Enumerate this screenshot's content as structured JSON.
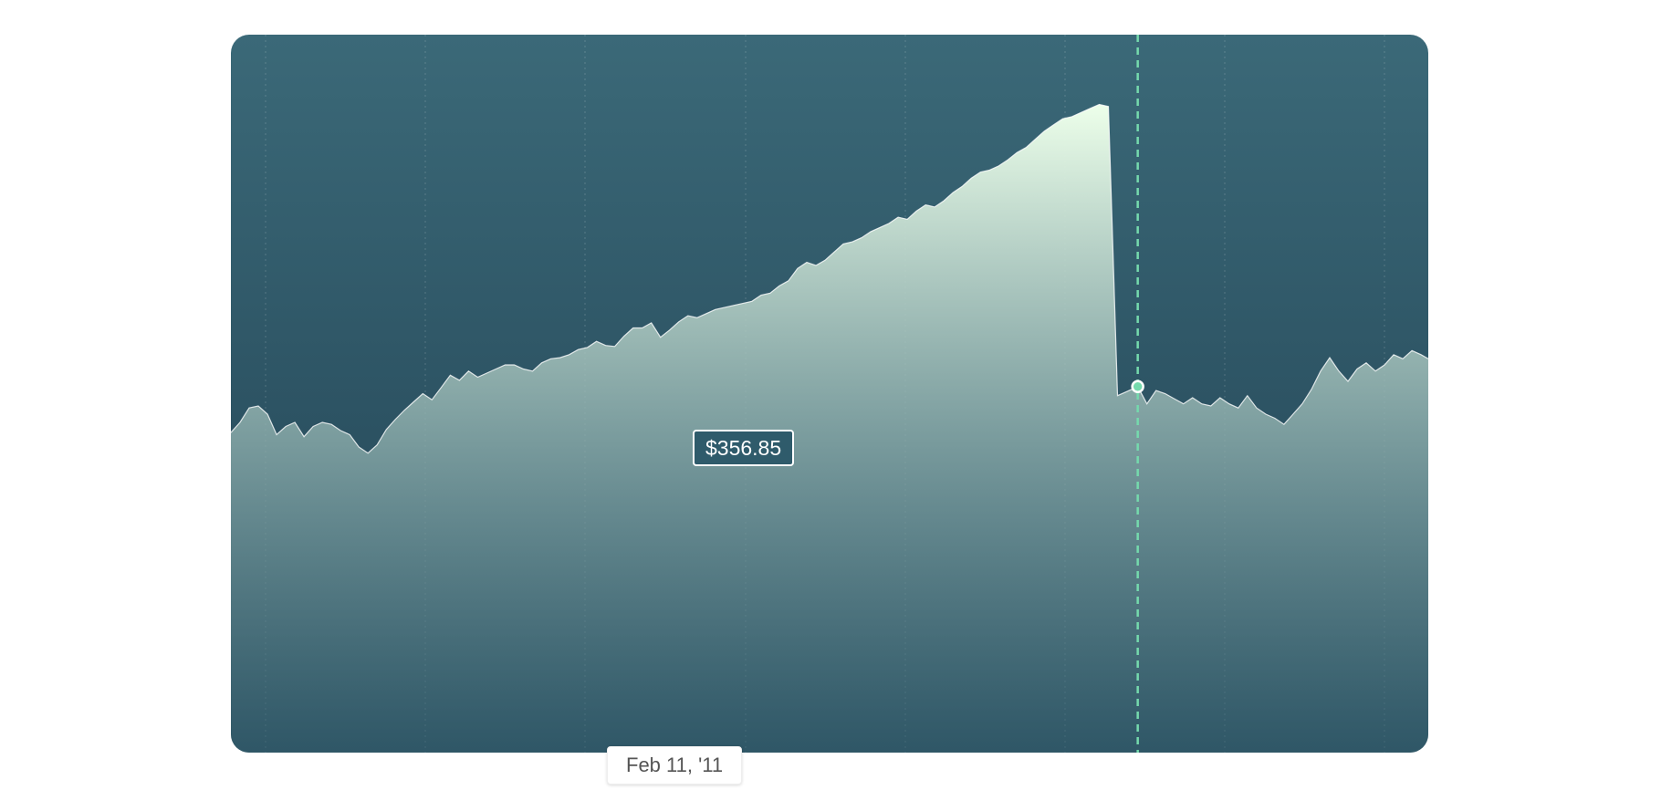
{
  "chart_data": {
    "type": "area",
    "title": "",
    "xlabel": "",
    "ylabel": "",
    "x_range": [
      "2007-04-24",
      "2012-05-01"
    ],
    "ylim": [
      0,
      700
    ],
    "grid": {
      "vertical": true,
      "horizontal": false
    },
    "colors": {
      "background_top": "#3b6978",
      "background_bottom": "#204051",
      "area_top": "#edffea",
      "area_bottom": "#3b6978",
      "area_stroke": "#ffffff",
      "crosshair": "#75daad"
    },
    "series": [
      {
        "points": [
          [
            "2007-04-24",
            312
          ],
          [
            "2007-05-08",
            322
          ],
          [
            "2007-05-22",
            336
          ],
          [
            "2007-06-05",
            338
          ],
          [
            "2007-06-19",
            330
          ],
          [
            "2007-07-03",
            310
          ],
          [
            "2007-07-17",
            318
          ],
          [
            "2007-07-31",
            322
          ],
          [
            "2007-08-14",
            308
          ],
          [
            "2007-08-28",
            318
          ],
          [
            "2007-09-11",
            322
          ],
          [
            "2007-09-25",
            320
          ],
          [
            "2007-10-09",
            314
          ],
          [
            "2007-10-23",
            310
          ],
          [
            "2007-11-06",
            298
          ],
          [
            "2007-11-20",
            292
          ],
          [
            "2007-12-04",
            300
          ],
          [
            "2007-12-18",
            315
          ],
          [
            "2008-01-01",
            325
          ],
          [
            "2008-01-15",
            334
          ],
          [
            "2008-01-29",
            342
          ],
          [
            "2008-02-12",
            350
          ],
          [
            "2008-02-26",
            344
          ],
          [
            "2008-03-11",
            356
          ],
          [
            "2008-03-25",
            368
          ],
          [
            "2008-04-08",
            363
          ],
          [
            "2008-04-22",
            372
          ],
          [
            "2008-05-06",
            366
          ],
          [
            "2008-05-20",
            370
          ],
          [
            "2008-06-03",
            374
          ],
          [
            "2008-06-17",
            378
          ],
          [
            "2008-07-01",
            378
          ],
          [
            "2008-07-15",
            374
          ],
          [
            "2008-07-29",
            372
          ],
          [
            "2008-08-12",
            380
          ],
          [
            "2008-08-26",
            384
          ],
          [
            "2008-09-09",
            385
          ],
          [
            "2008-09-23",
            388
          ],
          [
            "2008-10-07",
            393
          ],
          [
            "2008-10-21",
            395
          ],
          [
            "2008-11-04",
            401
          ],
          [
            "2008-11-18",
            397
          ],
          [
            "2008-12-02",
            396
          ],
          [
            "2008-12-16",
            406
          ],
          [
            "2008-12-30",
            414
          ],
          [
            "2009-01-13",
            414
          ],
          [
            "2009-01-27",
            419
          ],
          [
            "2009-02-10",
            405
          ],
          [
            "2009-02-24",
            412
          ],
          [
            "2009-03-10",
            420
          ],
          [
            "2009-03-24",
            426
          ],
          [
            "2009-04-07",
            424
          ],
          [
            "2009-04-21",
            428
          ],
          [
            "2009-05-05",
            432
          ],
          [
            "2009-05-19",
            434
          ],
          [
            "2009-06-02",
            436
          ],
          [
            "2009-06-16",
            438
          ],
          [
            "2009-06-30",
            440
          ],
          [
            "2009-07-14",
            446
          ],
          [
            "2009-07-28",
            448
          ],
          [
            "2009-08-11",
            455
          ],
          [
            "2009-08-25",
            460
          ],
          [
            "2009-09-08",
            472
          ],
          [
            "2009-09-22",
            478
          ],
          [
            "2009-10-06",
            475
          ],
          [
            "2009-10-20",
            480
          ],
          [
            "2009-11-03",
            488
          ],
          [
            "2009-11-17",
            496
          ],
          [
            "2009-12-01",
            498
          ],
          [
            "2009-12-15",
            502
          ],
          [
            "2009-12-29",
            508
          ],
          [
            "2010-01-12",
            512
          ],
          [
            "2010-01-26",
            516
          ],
          [
            "2010-02-09",
            522
          ],
          [
            "2010-02-23",
            520
          ],
          [
            "2010-03-09",
            528
          ],
          [
            "2010-03-23",
            534
          ],
          [
            "2010-04-06",
            532
          ],
          [
            "2010-04-20",
            538
          ],
          [
            "2010-05-04",
            546
          ],
          [
            "2010-05-18",
            552
          ],
          [
            "2010-06-01",
            560
          ],
          [
            "2010-06-15",
            566
          ],
          [
            "2010-06-29",
            568
          ],
          [
            "2010-07-13",
            572
          ],
          [
            "2010-07-27",
            578
          ],
          [
            "2010-08-10",
            585
          ],
          [
            "2010-08-24",
            590
          ],
          [
            "2010-09-07",
            598
          ],
          [
            "2010-09-21",
            606
          ],
          [
            "2010-10-05",
            612
          ],
          [
            "2010-10-19",
            618
          ],
          [
            "2010-11-02",
            620
          ],
          [
            "2010-11-16",
            624
          ],
          [
            "2010-11-30",
            628
          ],
          [
            "2010-12-14",
            632
          ],
          [
            "2010-12-28",
            630
          ],
          [
            "2011-01-11",
            348
          ],
          [
            "2011-01-25",
            352
          ],
          [
            "2011-02-11",
            356.85
          ],
          [
            "2011-02-25",
            340
          ],
          [
            "2011-03-11",
            353
          ],
          [
            "2011-03-25",
            350
          ],
          [
            "2011-04-08",
            345
          ],
          [
            "2011-04-22",
            340
          ],
          [
            "2011-05-06",
            346
          ],
          [
            "2011-05-20",
            340
          ],
          [
            "2011-06-03",
            338
          ],
          [
            "2011-06-17",
            346
          ],
          [
            "2011-07-01",
            340
          ],
          [
            "2011-07-15",
            336
          ],
          [
            "2011-07-29",
            348
          ],
          [
            "2011-08-12",
            336
          ],
          [
            "2011-08-26",
            330
          ],
          [
            "2011-09-09",
            326
          ],
          [
            "2011-09-23",
            320
          ],
          [
            "2011-10-07",
            330
          ],
          [
            "2011-10-21",
            340
          ],
          [
            "2011-11-04",
            354
          ],
          [
            "2011-11-18",
            372
          ],
          [
            "2011-12-02",
            385
          ],
          [
            "2011-12-16",
            372
          ],
          [
            "2011-12-30",
            362
          ],
          [
            "2012-01-13",
            374
          ],
          [
            "2012-01-27",
            380
          ],
          [
            "2012-02-10",
            372
          ],
          [
            "2012-02-24",
            378
          ],
          [
            "2012-03-09",
            388
          ],
          [
            "2012-03-23",
            384
          ],
          [
            "2012-04-06",
            392
          ],
          [
            "2012-04-20",
            388
          ],
          [
            "2012-05-01",
            384
          ]
        ]
      }
    ],
    "crosshair": {
      "date_label": "Feb 11, '11",
      "value_label": "$356.85",
      "x": "2011-02-11",
      "y": 356.85
    }
  }
}
